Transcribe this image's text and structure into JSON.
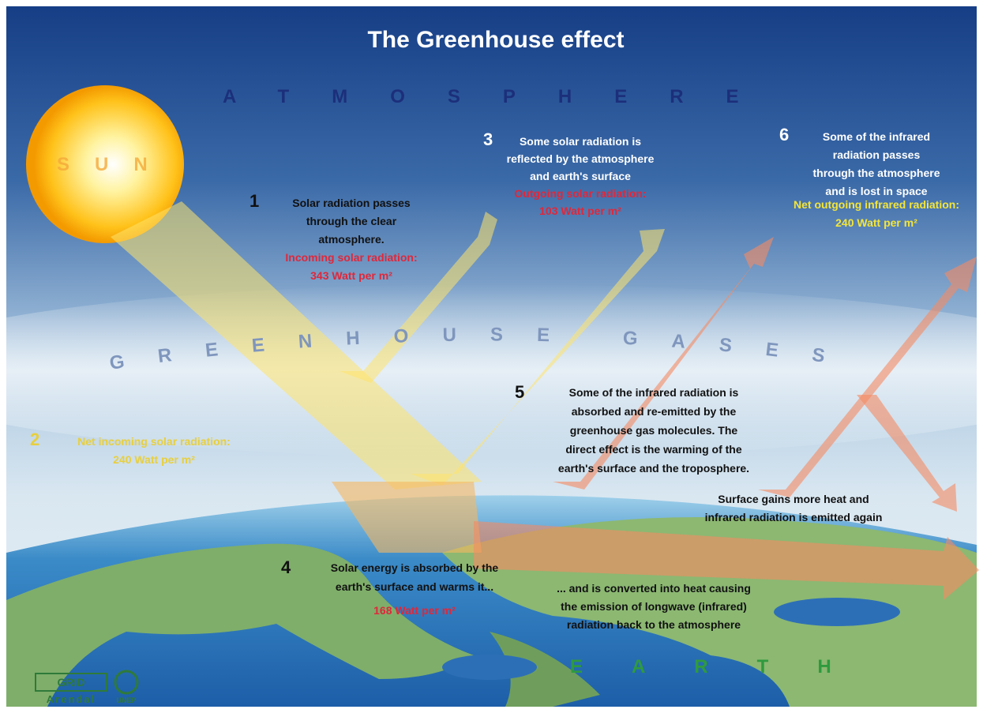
{
  "title": "The Greenhouse effect",
  "labels": {
    "atmosphere": "ATMOSPHERE",
    "sun": "SUN",
    "greenhouse_gases": "GREENHOUSE GASES",
    "earth": "EARTH"
  },
  "steps": [
    {
      "number": "1",
      "lines": [
        "Solar radiation passes",
        "through the clear",
        "atmosphere."
      ],
      "flux_label": "Incoming solar radiation:",
      "flux": "343 Watt per m²"
    },
    {
      "number": "2",
      "flux_label": "Net incoming solar radiation:",
      "flux": "240 Watt per m²"
    },
    {
      "number": "3",
      "lines": [
        "Some solar radiation is",
        "reflected by the atmosphere",
        "and earth's surface"
      ],
      "flux_label": "Outgoing solar radiation:",
      "flux": "103 Watt per m²"
    },
    {
      "number": "4",
      "lines": [
        "Solar energy is absorbed by the",
        "earth's surface and warms it..."
      ],
      "flux": "168 Watt per m²"
    },
    {
      "number": "5",
      "lines": [
        "Some of the infrared radiation is",
        "absorbed and re-emitted by the",
        "greenhouse gas molecules. The",
        "direct effect is the warming of the",
        "earth's surface and the troposphere."
      ]
    },
    {
      "number": "6",
      "lines": [
        "Some of the infrared",
        "radiation passes",
        "through the atmosphere",
        "and is lost in space"
      ],
      "flux_label": "Net outgoing infrared radiation:",
      "flux": "240 Watt per m²"
    }
  ],
  "notes": {
    "surface": [
      "Surface gains more heat and",
      "infrared radiation is emitted again"
    ],
    "converted": [
      "... and is converted into heat causing",
      "the emission of longwave (infrared)",
      "radiation back to the atmosphere"
    ]
  },
  "logos": {
    "grid": "GRID",
    "arendal": "Arendal",
    "unep": "UNEP"
  }
}
